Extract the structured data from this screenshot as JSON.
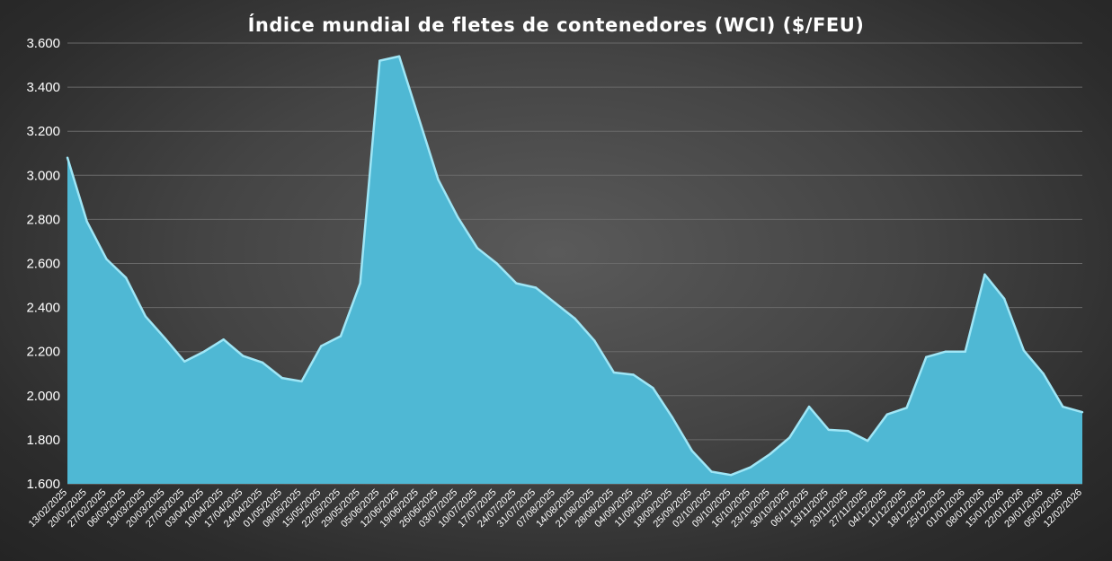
{
  "chart_data": {
    "type": "area",
    "title": "Índice mundial de fletes de contenedores (WCI) ($/FEU)",
    "xlabel": "",
    "ylabel": "",
    "ylim": [
      1600,
      3600
    ],
    "yticks": [
      "1.600",
      "1.800",
      "2.000",
      "2.200",
      "2.400",
      "2.600",
      "2.800",
      "3.000",
      "3.200",
      "3.400",
      "3.600"
    ],
    "grid": true,
    "legend": "none",
    "colors": {
      "fill": "#4fb8d4",
      "edge": "#9fe6f6",
      "grid": "#6a6a6a",
      "text": "#ffffff"
    },
    "x": [
      "13/02/2025",
      "20/02/2025",
      "27/02/2025",
      "06/03/2025",
      "13/03/2025",
      "20/03/2025",
      "27/03/2025",
      "03/04/2025",
      "10/04/2025",
      "17/04/2025",
      "24/04/2025",
      "01/05/2025",
      "08/05/2025",
      "15/05/2025",
      "22/05/2025",
      "29/05/2025",
      "05/06/2025",
      "12/06/2025",
      "19/06/2025",
      "26/06/2025",
      "03/07/2025",
      "10/07/2025",
      "17/07/2025",
      "24/07/2025",
      "31/07/2025",
      "07/08/2025",
      "14/08/2025",
      "21/08/2025",
      "28/08/2025",
      "04/09/2025",
      "11/09/2025",
      "18/09/2025",
      "25/09/2025",
      "02/10/2025",
      "09/10/2025",
      "16/10/2025",
      "23/10/2025",
      "30/10/2025",
      "06/11/2025",
      "13/11/2025",
      "20/11/2025",
      "27/11/2025",
      "04/12/2025",
      "11/12/2025",
      "18/12/2025",
      "25/12/2025",
      "01/01/2026",
      "08/01/2026",
      "15/01/2026",
      "22/01/2026",
      "29/01/2026",
      "05/02/2026",
      "12/02/2026"
    ],
    "values": [
      3080,
      2790,
      2620,
      2535,
      2360,
      2260,
      2155,
      2200,
      2255,
      2180,
      2150,
      2080,
      2065,
      2225,
      2270,
      2510,
      3520,
      3540,
      3260,
      2980,
      2810,
      2670,
      2600,
      2510,
      2490,
      2420,
      2350,
      2250,
      2105,
      2095,
      2035,
      1900,
      1750,
      1655,
      1640,
      1675,
      1735,
      1810,
      1950,
      1845,
      1840,
      1795,
      1915,
      1945,
      2175,
      2200,
      2200,
      2550,
      2440,
      2205,
      2100,
      1950,
      1925
    ]
  }
}
